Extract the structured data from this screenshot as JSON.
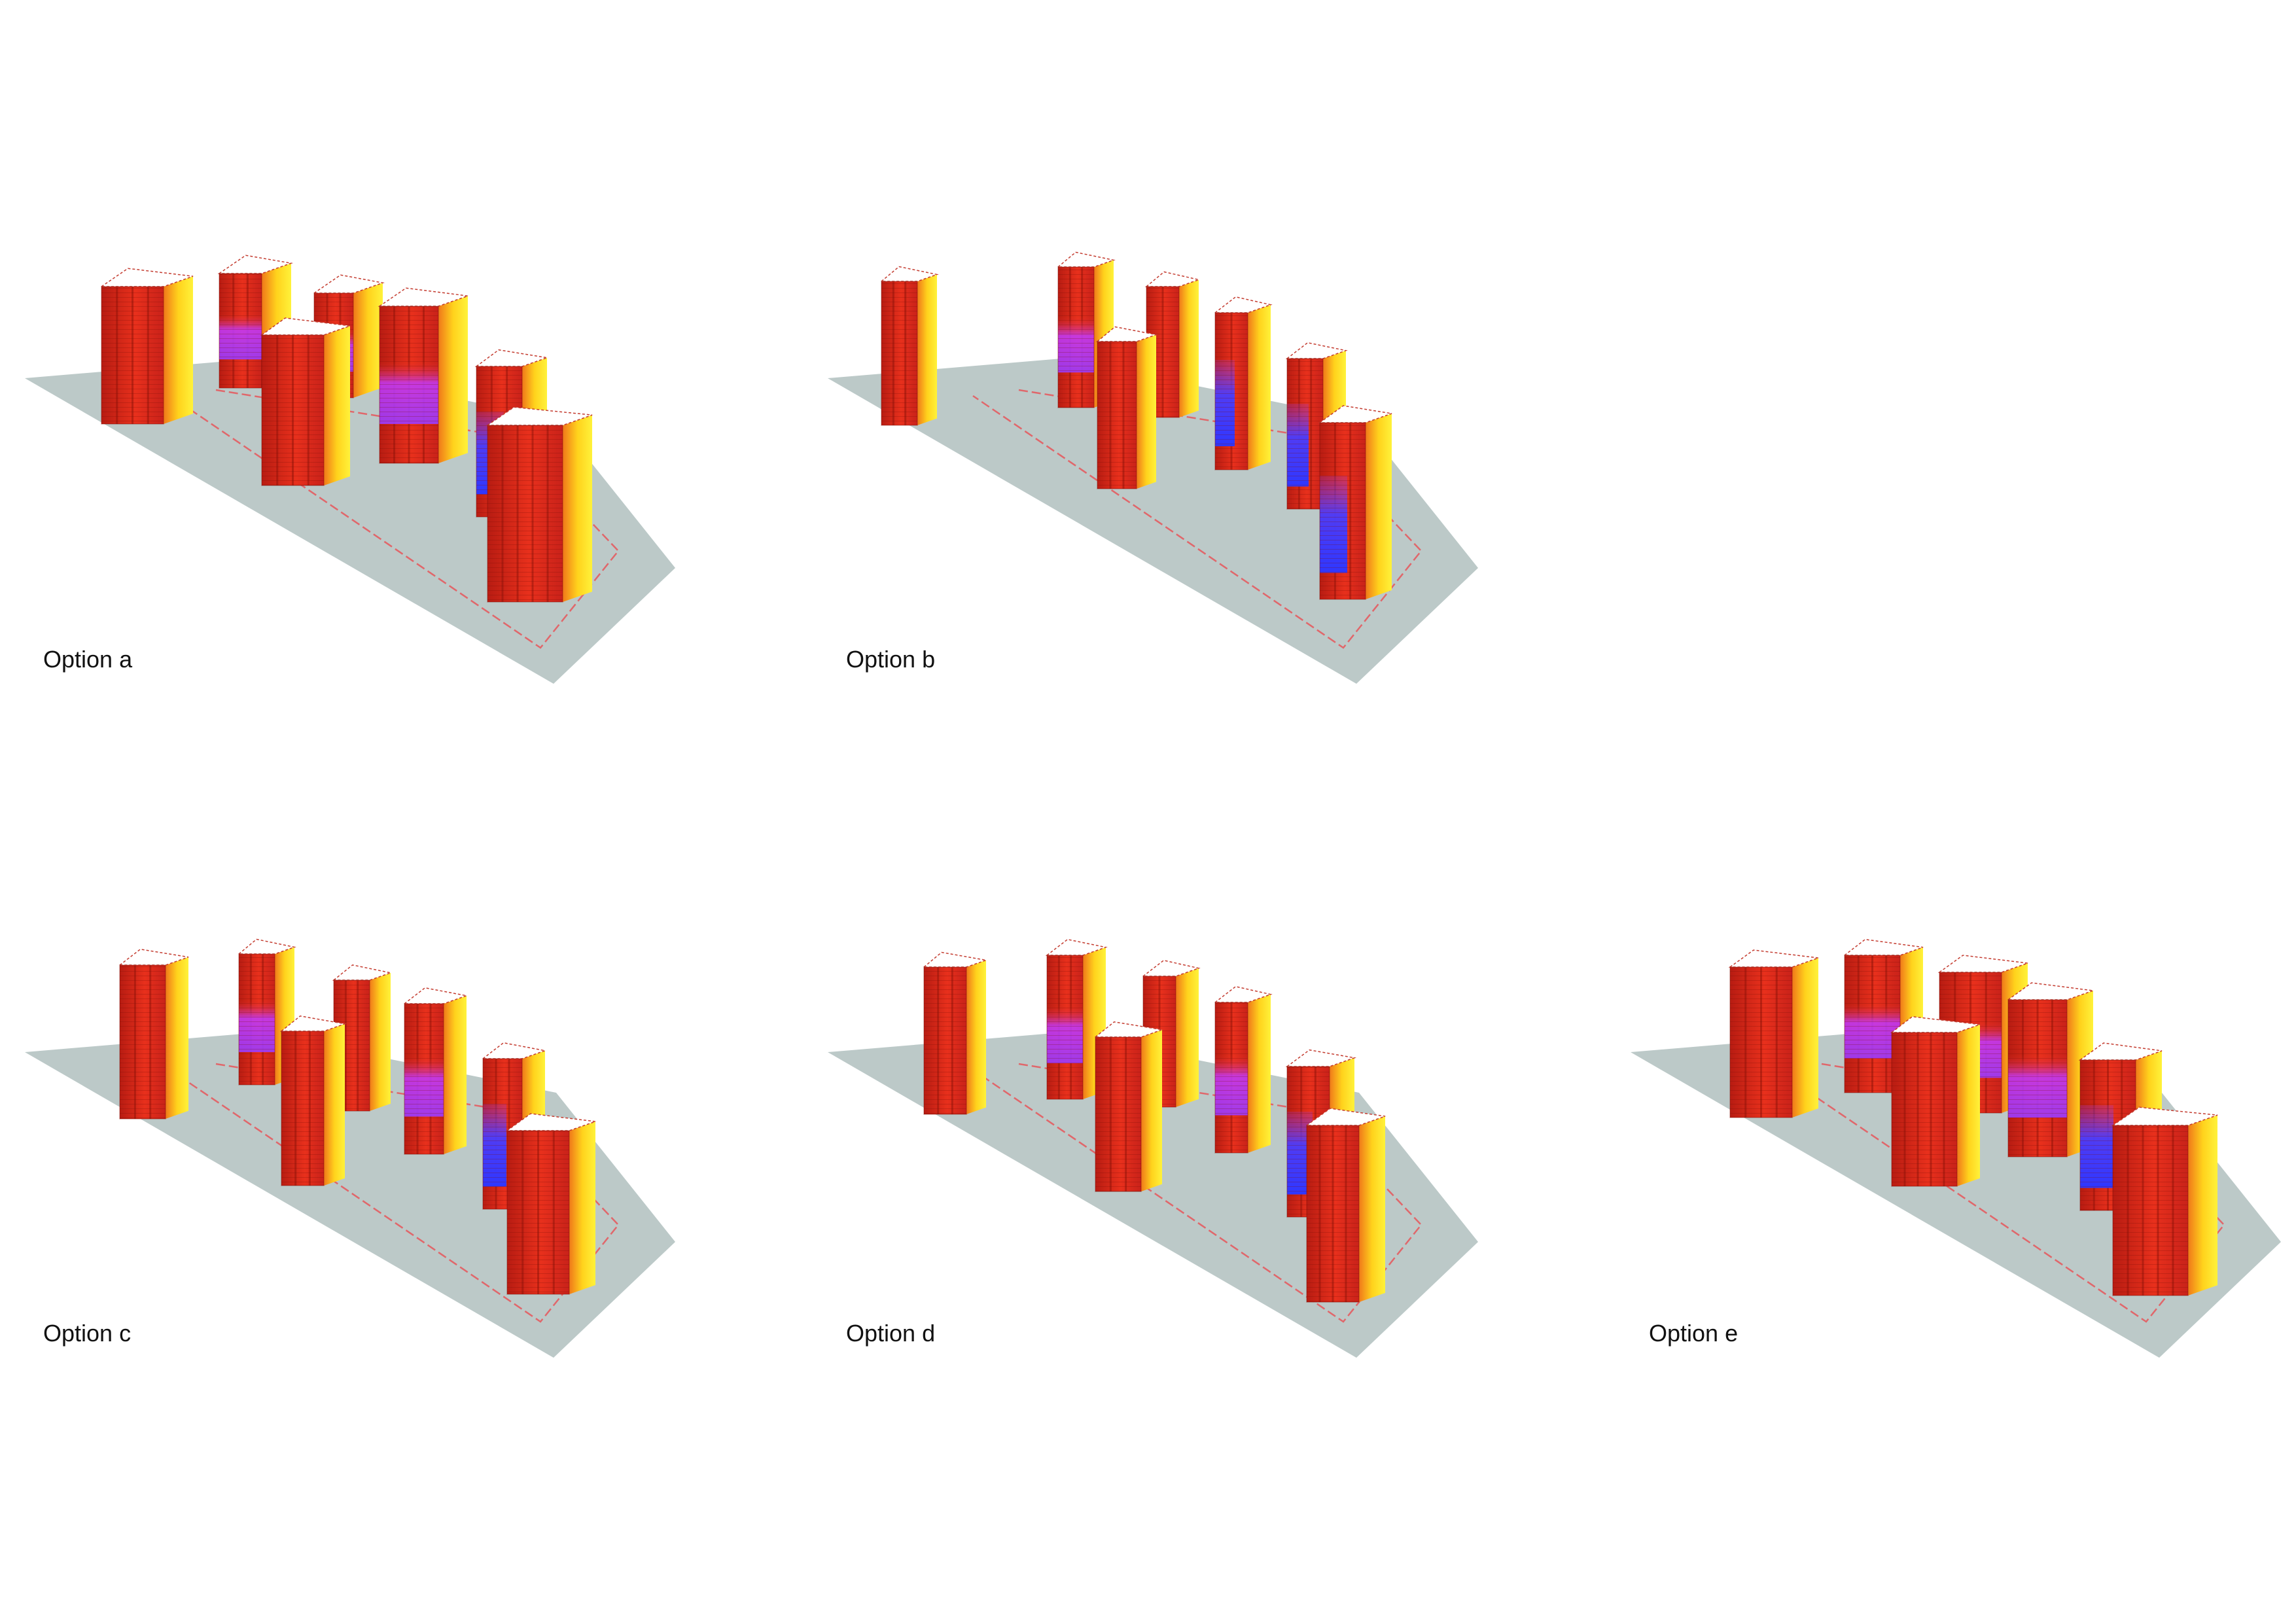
{
  "options": [
    {
      "id": "a",
      "label": "Option a"
    },
    {
      "id": "b",
      "label": "Option b"
    },
    {
      "id": "c",
      "label": "Option c"
    },
    {
      "id": "d",
      "label": "Option d"
    },
    {
      "id": "e",
      "label": "Option e"
    }
  ],
  "colors": {
    "site": "#bcc9c8",
    "boundary": "#e0676b",
    "heat_high": "#d42a1c",
    "heat_mid": "#f07a1a",
    "heat_warm": "#ffd21c",
    "heat_low_purple": "#b23cff",
    "heat_low_blue": "#3a3dff",
    "roof": "#ffffff"
  }
}
